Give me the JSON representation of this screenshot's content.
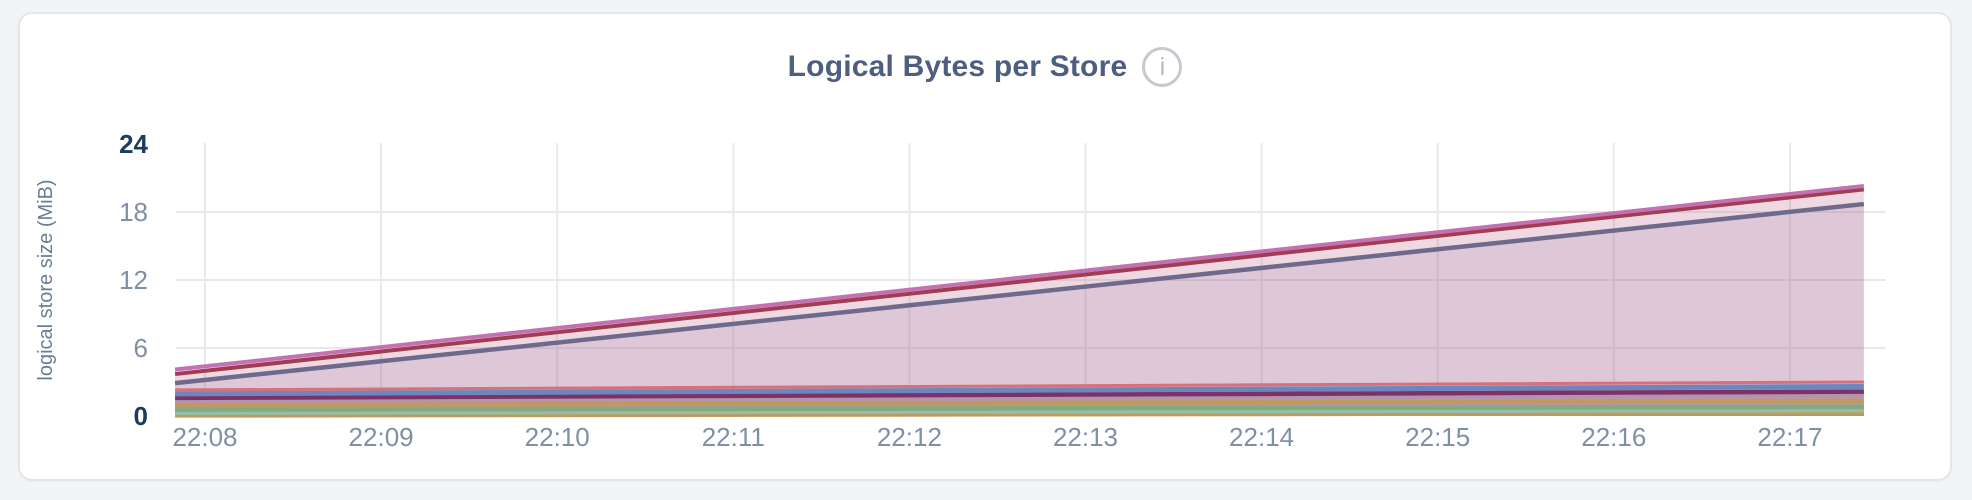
{
  "header": {
    "title": "Logical Bytes per Store",
    "info_icon_glyph": "i"
  },
  "colors": {
    "page_bg": "#f3f4f8",
    "card_bg": "#ffffff",
    "card_border": "#e4e5e9",
    "title": "#4d5e80",
    "tick_label": "#7f8fa6",
    "tick_label_emphasis": "#1d3a5f",
    "axis_label": "#6a7d96",
    "gridline": "#e9e9ed",
    "info_icon": "#c6c9cf"
  },
  "chart_data": {
    "type": "area",
    "title": "Logical Bytes per Store",
    "xlabel": "",
    "ylabel": "logical store size (MiB)",
    "unit": "MiB",
    "x_tick_labels": [
      "22:08",
      "22:09",
      "22:10",
      "22:11",
      "22:12",
      "22:13",
      "22:14",
      "22:15",
      "22:16",
      "22:17"
    ],
    "x_minutes_domain": [
      -0.17,
      9.42
    ],
    "ylim": [
      0,
      24
    ],
    "y_ticks": [
      {
        "value": 0,
        "label": "0",
        "bold": true
      },
      {
        "value": 6,
        "label": "6",
        "bold": false
      },
      {
        "value": 12,
        "label": "12",
        "bold": false
      },
      {
        "value": 18,
        "label": "18",
        "bold": false
      },
      {
        "value": 24,
        "label": "24",
        "bold": true
      }
    ],
    "y_gridline_values": [
      6,
      12,
      18
    ],
    "grid": true,
    "legend": "none",
    "series_note": "each series is a near-linear ramp; values given at domain start (≈22:07:50) and end (≈22:17:25)",
    "series": [
      {
        "name": "series-1",
        "color": "#c471b4",
        "line_width": 4,
        "fill_opacity": 0.12,
        "values": [
          4.1,
          20.3
        ]
      },
      {
        "name": "series-2",
        "color": "#a23c53",
        "line_width": 4,
        "fill_opacity": 0.12,
        "values": [
          3.7,
          20.0
        ]
      },
      {
        "name": "series-3",
        "color": "#6f6a8c",
        "line_width": 4.5,
        "fill_opacity": 0.14,
        "values": [
          2.9,
          18.7
        ]
      },
      {
        "name": "series-4",
        "color": "#d7707a",
        "line_width": 3,
        "fill_opacity": 0.15,
        "values": [
          2.3,
          3.0
        ]
      },
      {
        "name": "series-5",
        "color": "#6b87bd",
        "line_width": 5,
        "fill_opacity": 0.15,
        "values": [
          1.95,
          2.6
        ]
      },
      {
        "name": "series-6",
        "color": "#7c3268",
        "line_width": 4.5,
        "fill_opacity": 0.15,
        "values": [
          1.6,
          2.15
        ]
      },
      {
        "name": "series-7",
        "color": "#b494aa",
        "line_width": 4,
        "fill_opacity": 0.15,
        "values": [
          1.3,
          1.8
        ]
      },
      {
        "name": "series-8",
        "color": "#c0995f",
        "line_width": 4.5,
        "fill_opacity": 0.15,
        "values": [
          0.95,
          1.35
        ]
      },
      {
        "name": "series-9",
        "color": "#82aa80",
        "line_width": 4.5,
        "fill_opacity": 0.15,
        "values": [
          0.55,
          0.8
        ]
      },
      {
        "name": "series-10",
        "color": "#95bfa6",
        "line_width": 4,
        "fill_opacity": 0.15,
        "values": [
          0.28,
          0.5
        ]
      },
      {
        "name": "series-11",
        "color": "#bf9a5e",
        "line_width": 4.5,
        "fill_opacity": 0.15,
        "values": [
          0.05,
          0.25
        ]
      }
    ]
  }
}
